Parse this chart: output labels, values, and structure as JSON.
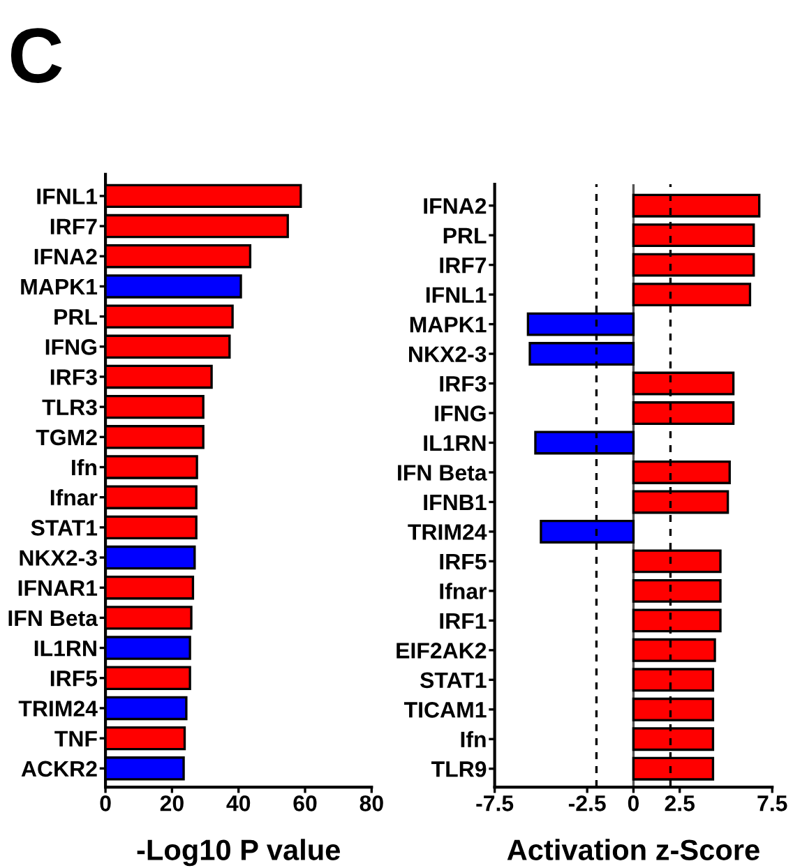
{
  "chart_data": [
    {
      "type": "bar",
      "orientation": "horizontal",
      "xlabel": "-Log10 P value",
      "annotations": [
        "C"
      ],
      "categories": [
        "IFNL1",
        "IRF7",
        "IFNA2",
        "MAPK1",
        "PRL",
        "IFNG",
        "IRF3",
        "TLR3",
        "TGM2",
        "Ifn",
        "Ifnar",
        "STAT1",
        "NKX2-3",
        "IFNAR1",
        "IFN Beta",
        "IL1RN",
        "IRF5",
        "TRIM24",
        "TNF",
        "ACKR2"
      ],
      "values": [
        58.7,
        54.8,
        43.5,
        40.7,
        38.2,
        37.3,
        31.9,
        29.4,
        29.4,
        27.5,
        27.3,
        27.3,
        26.8,
        26.3,
        25.8,
        25.4,
        25.4,
        24.3,
        23.8,
        23.5
      ],
      "colors": [
        "#ff0000",
        "#ff0000",
        "#ff0000",
        "#0000ff",
        "#ff0000",
        "#ff0000",
        "#ff0000",
        "#ff0000",
        "#ff0000",
        "#ff0000",
        "#ff0000",
        "#ff0000",
        "#0000ff",
        "#ff0000",
        "#ff0000",
        "#0000ff",
        "#ff0000",
        "#0000ff",
        "#ff0000",
        "#0000ff"
      ],
      "xlim": [
        0,
        80
      ],
      "xticks": [
        0,
        20,
        40,
        60,
        80
      ],
      "grid": false,
      "legend": false
    },
    {
      "type": "bar",
      "orientation": "horizontal",
      "xlabel": "Activation z-Score",
      "categories": [
        "IFNA2",
        "PRL",
        "IRF7",
        "IFNL1",
        "MAPK1",
        "NKX2-3",
        "IRF3",
        "IFNG",
        "IL1RN",
        "IFN Beta",
        "IFNB1",
        "TRIM24",
        "IRF5",
        "Ifnar",
        "IRF1",
        "EIF2AK2",
        "STAT1",
        "TICAM1",
        "Ifn",
        "TLR9"
      ],
      "values": [
        6.8,
        6.5,
        6.5,
        6.3,
        -5.7,
        -5.6,
        5.4,
        5.4,
        -5.3,
        5.2,
        5.1,
        -5.0,
        4.7,
        4.7,
        4.7,
        4.4,
        4.3,
        4.3,
        4.3,
        4.3
      ],
      "colors": [
        "#ff0000",
        "#ff0000",
        "#ff0000",
        "#ff0000",
        "#0000ff",
        "#0000ff",
        "#ff0000",
        "#ff0000",
        "#0000ff",
        "#ff0000",
        "#ff0000",
        "#0000ff",
        "#ff0000",
        "#ff0000",
        "#ff0000",
        "#ff0000",
        "#ff0000",
        "#ff0000",
        "#ff0000",
        "#ff0000"
      ],
      "xlim": [
        -7.5,
        7.5
      ],
      "xticks": [
        -7.5,
        -2.5,
        0,
        2.5,
        7.5
      ],
      "grid": false,
      "legend": false,
      "ref_lines": [
        {
          "axis": "x",
          "value": 0,
          "line_style": "solid",
          "color": "#555555"
        },
        {
          "axis": "x",
          "value": -2,
          "line_style": "dashed",
          "color": "#000000"
        },
        {
          "axis": "x",
          "value": 2,
          "line_style": "dashed",
          "color": "#000000"
        }
      ]
    }
  ]
}
